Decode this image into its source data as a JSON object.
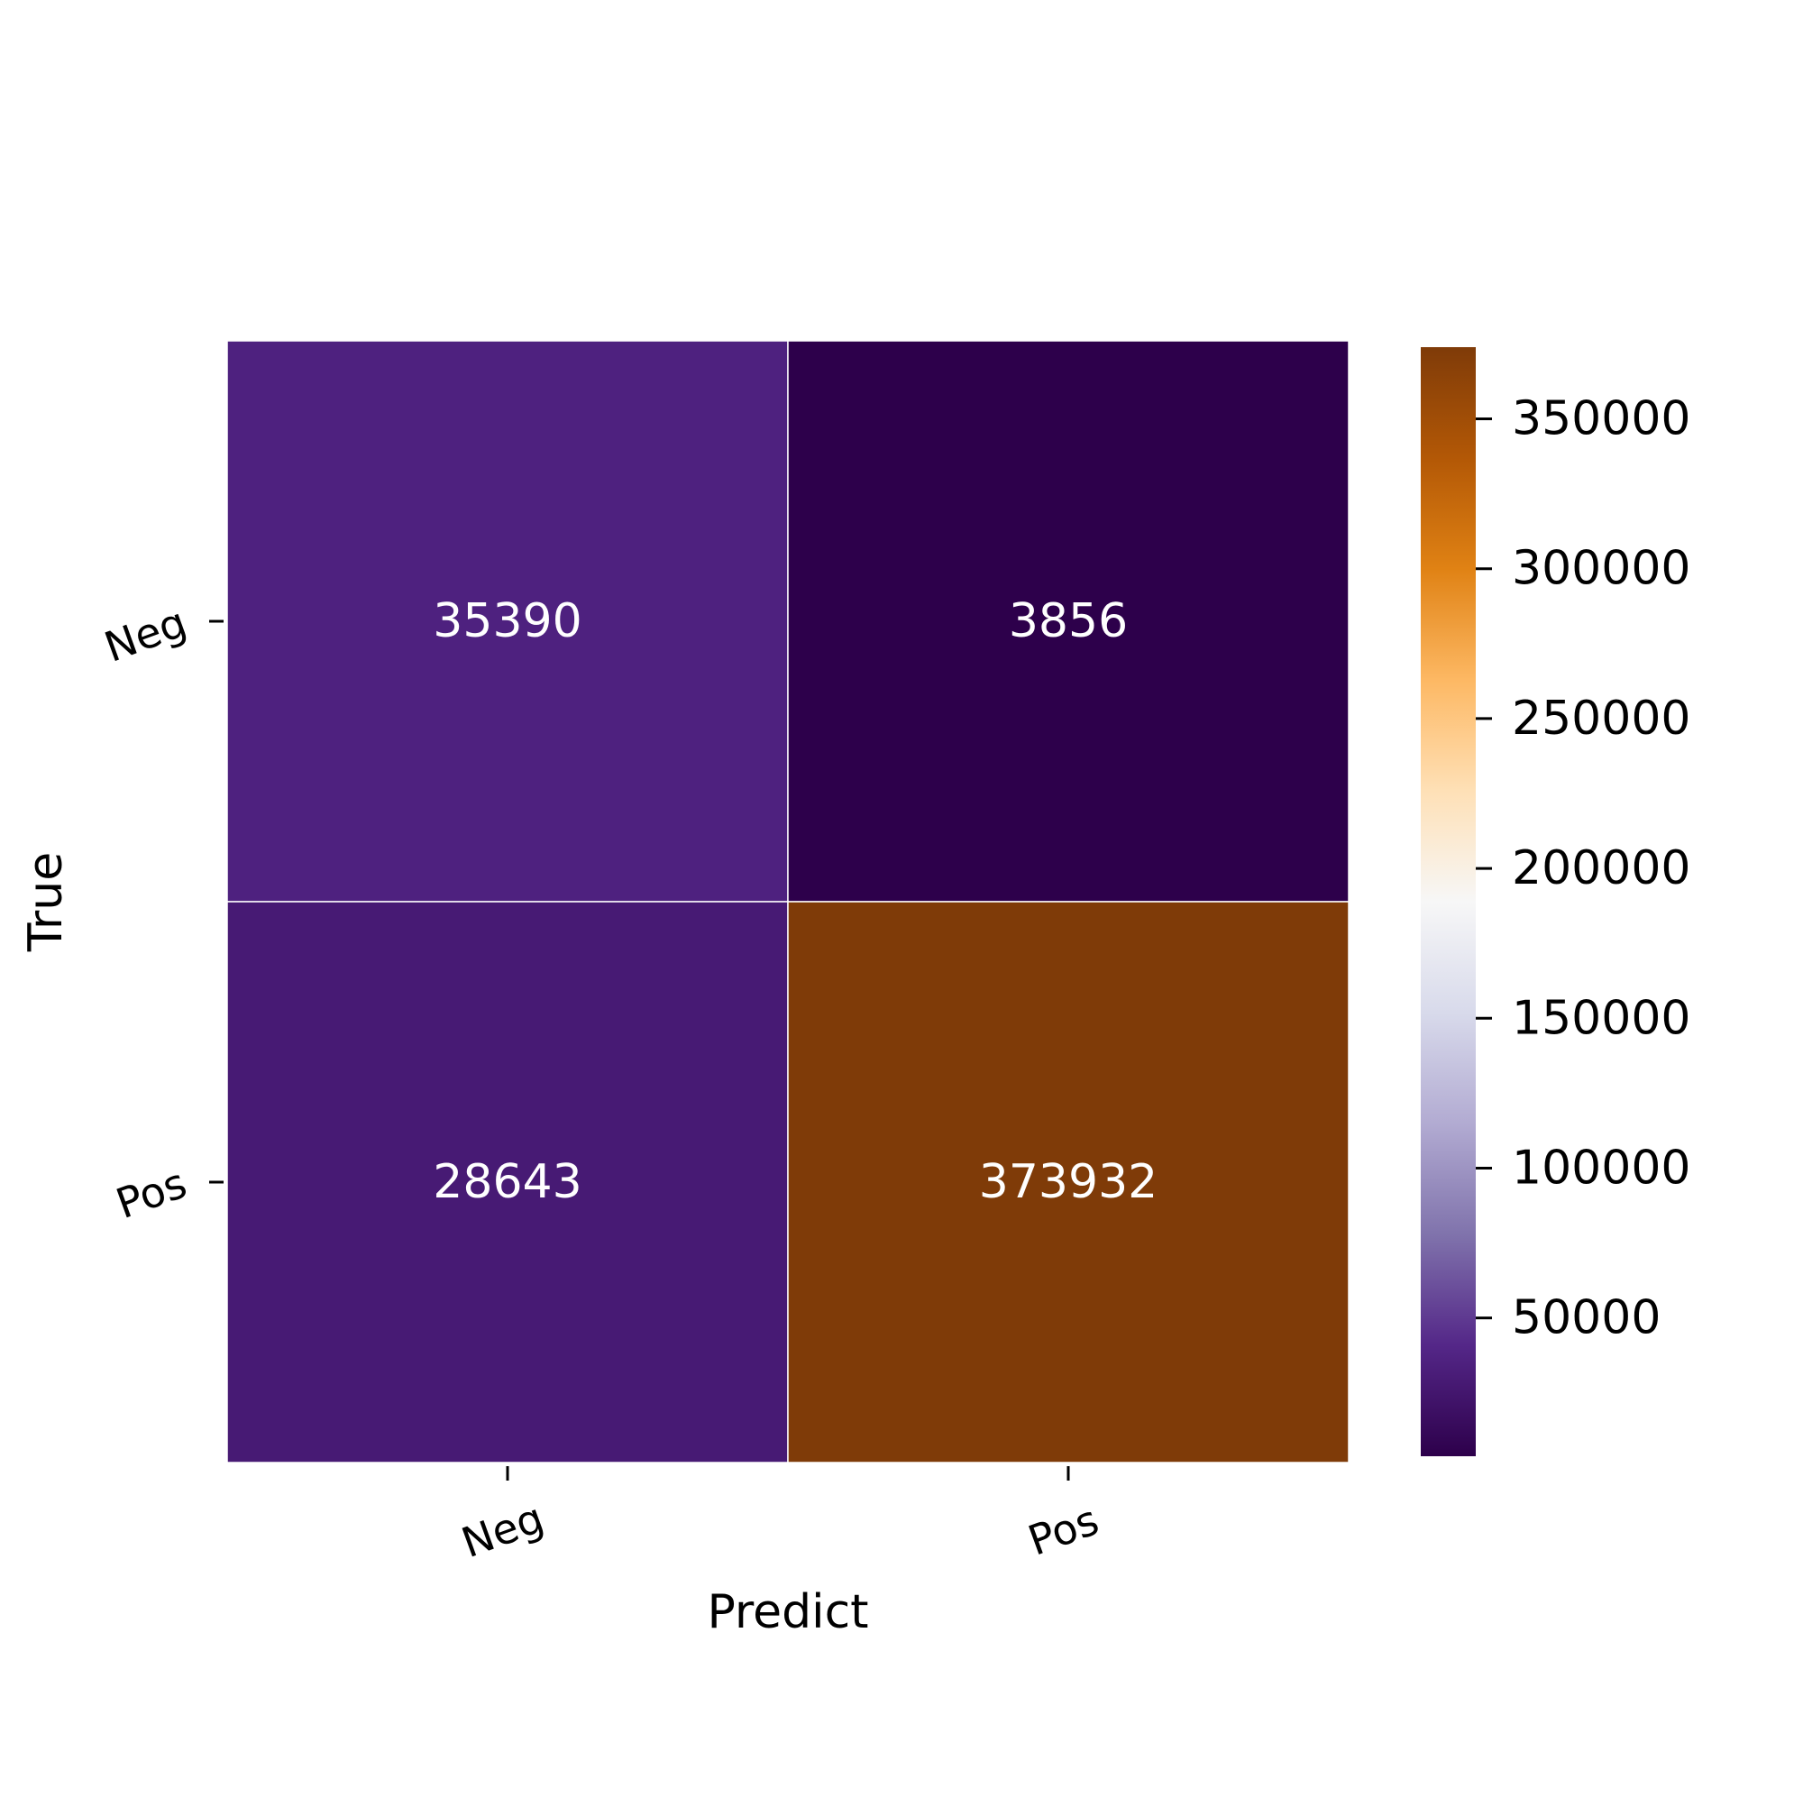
{
  "chart_data": {
    "type": "heatmap",
    "title": "",
    "xlabel": "Predict",
    "ylabel": "True",
    "x_categories": [
      "Neg",
      "Pos"
    ],
    "y_categories": [
      "Neg",
      "Pos"
    ],
    "values": [
      [
        35390,
        3856
      ],
      [
        28643,
        373932
      ]
    ],
    "cell_annotation_color": "#ffffff",
    "cell_border_color": "#ffffff",
    "tick_label_rotation_deg": -20,
    "colorbar": {
      "min": 3856,
      "max": 373932,
      "ticks": [
        50000,
        100000,
        150000,
        200000,
        250000,
        300000,
        350000
      ],
      "tick_labels": [
        "50000",
        "100000",
        "150000",
        "200000",
        "250000",
        "300000",
        "350000"
      ],
      "colormap": "PuOr_r",
      "stops": [
        {
          "t": 0.0,
          "color": "#2d004b"
        },
        {
          "t": 0.1,
          "color": "#542788"
        },
        {
          "t": 0.2,
          "color": "#8073ac"
        },
        {
          "t": 0.3,
          "color": "#b2abd2"
        },
        {
          "t": 0.4,
          "color": "#d8daeb"
        },
        {
          "t": 0.5,
          "color": "#f7f7f7"
        },
        {
          "t": 0.6,
          "color": "#fee0b6"
        },
        {
          "t": 0.7,
          "color": "#fdb863"
        },
        {
          "t": 0.8,
          "color": "#e08214"
        },
        {
          "t": 0.9,
          "color": "#b35806"
        },
        {
          "t": 1.0,
          "color": "#7f3b08"
        }
      ]
    },
    "legend_position": "right"
  }
}
